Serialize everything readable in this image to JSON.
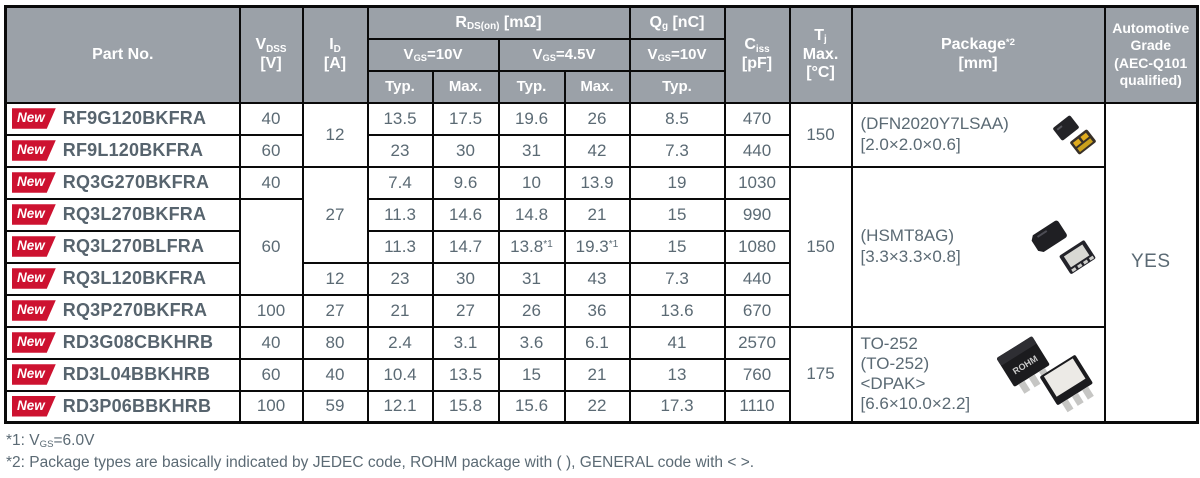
{
  "header": {
    "part_no": "Part No.",
    "vdss": {
      "base": "V",
      "sub": "DSS",
      "unit": "[V]"
    },
    "id": {
      "base": "I",
      "sub": "D",
      "unit": "[A]"
    },
    "rds_on": {
      "base": "R",
      "sub": "DS(on)",
      "unit": " [mΩ]"
    },
    "vgs_10v": {
      "base": "V",
      "sub": "GS",
      "rest": "=10V"
    },
    "vgs_4_5v": {
      "base": "V",
      "sub": "GS",
      "rest": "=4.5V"
    },
    "qg": {
      "base": "Q",
      "sub": "g",
      "unit": " [nC]"
    },
    "qg_vgs_10v": {
      "base": "V",
      "sub": "GS",
      "rest": "=10V"
    },
    "typ": "Typ.",
    "max": "Max.",
    "ciss": {
      "base": "C",
      "sub": "iss",
      "unit": "[pF]"
    },
    "tj": {
      "base": "T",
      "sub": "j",
      "line2": "Max.",
      "line3": "[°C]"
    },
    "package": {
      "base": "Package",
      "sup": "*2",
      "unit": "[mm]"
    },
    "automotive": "Automotive Grade (AEC-Q101 qualified)"
  },
  "badge_new": "New",
  "packages": [
    {
      "name_lines": [
        "(DFN2020Y7LSAA)",
        "[2.0×2.0×0.6]"
      ],
      "icon": "dfn2020-package-icon"
    },
    {
      "name_lines": [
        "(HSMT8AG)",
        "[3.3×3.3×0.8]"
      ],
      "icon": "hsmt8ag-package-icon"
    },
    {
      "name_lines": [
        "TO-252",
        "(TO-252)",
        "<DPAK>",
        "[6.6×10.0×2.2]"
      ],
      "icon": "to252-package-icon"
    }
  ],
  "rows": [
    {
      "part": "RF9G120BKFRA",
      "cells": [
        {
          "v": "40",
          "n": "vdss-cell"
        },
        {
          "v": "12",
          "rs": 2,
          "n": "id-cell"
        },
        {
          "v": "13.5"
        },
        {
          "v": "17.5"
        },
        {
          "v": "19.6"
        },
        {
          "v": "26"
        },
        {
          "v": "8.5"
        },
        {
          "v": "470",
          "n": "ciss-cell"
        },
        {
          "v": "150",
          "rs": 2,
          "n": "tj-max-cell",
          "cls": "tj"
        },
        {
          "pkg": 0,
          "rs": 2
        },
        {
          "v": "YES",
          "rs": 10,
          "n": "automotive-grade-cell",
          "cls": "grade"
        }
      ]
    },
    {
      "part": "RF9L120BKFRA",
      "cells": [
        {
          "v": "60",
          "n": "vdss-cell"
        },
        {
          "v": "23"
        },
        {
          "v": "30"
        },
        {
          "v": "31"
        },
        {
          "v": "42"
        },
        {
          "v": "7.3"
        },
        {
          "v": "440",
          "n": "ciss-cell"
        }
      ]
    },
    {
      "part": "RQ3G270BKFRA",
      "cells": [
        {
          "v": "40",
          "n": "vdss-cell"
        },
        {
          "v": "27",
          "rs": 3,
          "n": "id-cell"
        },
        {
          "v": "7.4"
        },
        {
          "v": "9.6"
        },
        {
          "v": "10"
        },
        {
          "v": "13.9"
        },
        {
          "v": "19"
        },
        {
          "v": "1030",
          "n": "ciss-cell"
        },
        {
          "v": "150",
          "rs": 5,
          "n": "tj-max-cell",
          "cls": "tj"
        },
        {
          "pkg": 1,
          "rs": 5
        }
      ]
    },
    {
      "part": "RQ3L270BKFRA",
      "cells": [
        {
          "v": "60",
          "rs": 3,
          "n": "vdss-cell"
        },
        {
          "v": "11.3"
        },
        {
          "v": "14.6"
        },
        {
          "v": "14.8"
        },
        {
          "v": "21"
        },
        {
          "v": "15"
        },
        {
          "v": "990",
          "n": "ciss-cell"
        }
      ]
    },
    {
      "part": "RQ3L270BLFRA",
      "cells": [
        {
          "v": "11.3"
        },
        {
          "v": "14.7"
        },
        {
          "v": "13.8",
          "sup": "*1"
        },
        {
          "v": "19.3",
          "sup": "*1"
        },
        {
          "v": "15"
        },
        {
          "v": "1080",
          "n": "ciss-cell"
        }
      ]
    },
    {
      "part": "RQ3L120BKFRA",
      "cells": [
        {
          "v": "12",
          "n": "id-cell"
        },
        {
          "v": "23"
        },
        {
          "v": "30"
        },
        {
          "v": "31"
        },
        {
          "v": "43"
        },
        {
          "v": "7.3"
        },
        {
          "v": "440",
          "n": "ciss-cell"
        }
      ]
    },
    {
      "part": "RQ3P270BKFRA",
      "cells": [
        {
          "v": "100",
          "n": "vdss-cell"
        },
        {
          "v": "27",
          "n": "id-cell"
        },
        {
          "v": "21"
        },
        {
          "v": "27"
        },
        {
          "v": "26"
        },
        {
          "v": "36"
        },
        {
          "v": "13.6"
        },
        {
          "v": "670",
          "n": "ciss-cell"
        }
      ]
    },
    {
      "part": "RD3G08CBKHRB",
      "cells": [
        {
          "v": "40",
          "n": "vdss-cell"
        },
        {
          "v": "80",
          "n": "id-cell"
        },
        {
          "v": "2.4"
        },
        {
          "v": "3.1"
        },
        {
          "v": "3.6"
        },
        {
          "v": "6.1"
        },
        {
          "v": "41"
        },
        {
          "v": "2570",
          "n": "ciss-cell"
        },
        {
          "v": "175",
          "rs": 3,
          "n": "tj-max-cell",
          "cls": "tj"
        },
        {
          "pkg": 2,
          "rs": 3
        }
      ]
    },
    {
      "part": "RD3L04BBKHRB",
      "cells": [
        {
          "v": "60",
          "n": "vdss-cell"
        },
        {
          "v": "40",
          "n": "id-cell"
        },
        {
          "v": "10.4"
        },
        {
          "v": "13.5"
        },
        {
          "v": "15"
        },
        {
          "v": "21"
        },
        {
          "v": "13"
        },
        {
          "v": "760",
          "n": "ciss-cell"
        }
      ]
    },
    {
      "part": "RD3P06BBKHRB",
      "cells": [
        {
          "v": "100",
          "n": "vdss-cell"
        },
        {
          "v": "59",
          "n": "id-cell"
        },
        {
          "v": "12.1"
        },
        {
          "v": "15.8"
        },
        {
          "v": "15.6"
        },
        {
          "v": "22"
        },
        {
          "v": "17.3"
        },
        {
          "v": "1110",
          "n": "ciss-cell"
        }
      ]
    }
  ],
  "footnotes": {
    "note1": {
      "prefix": "*1: V",
      "sub": "GS",
      "rest": "=6.0V"
    },
    "note2": {
      "text": "*2: Package types are basically indicated by JEDEC code, ROHM package with ( ), GENERAL code with < >."
    }
  },
  "colors": {
    "header_bg": "#9ba1a8",
    "border": "#0a0a0a",
    "body_text": "#5b6a74",
    "badge_red": "#cd1230",
    "header_text": "#ffffff"
  }
}
